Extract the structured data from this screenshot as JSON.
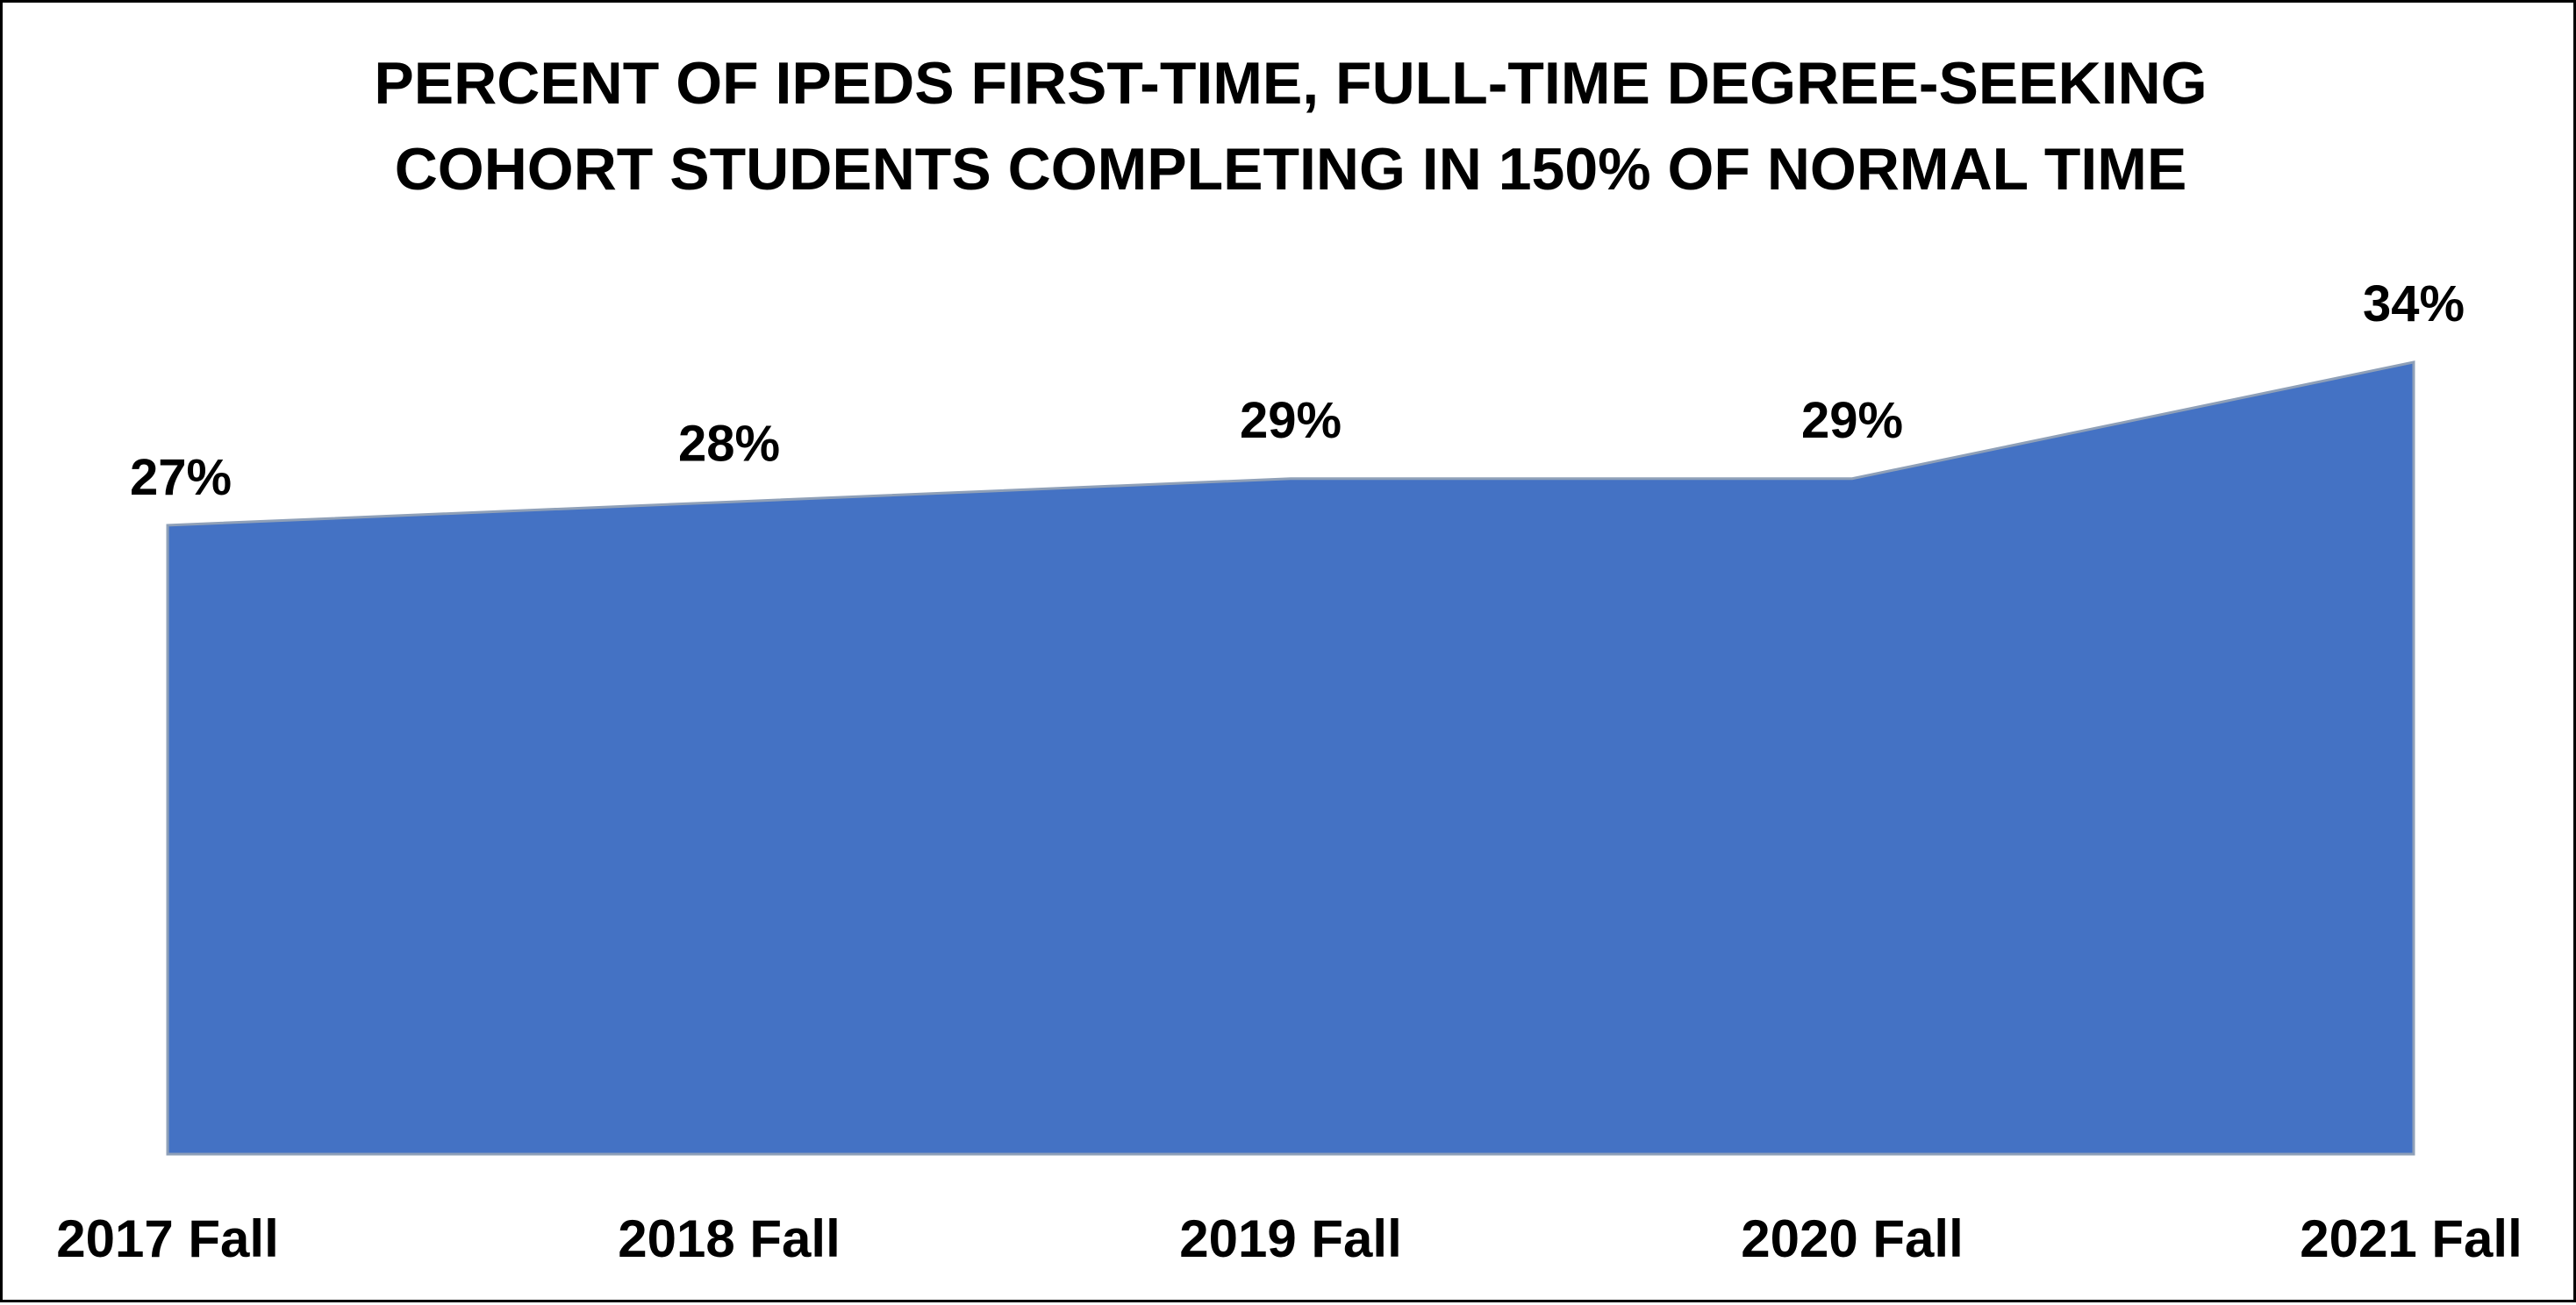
{
  "chart_data": {
    "type": "area",
    "title_lines": [
      "PERCENT OF IPEDS FIRST-TIME, FULL-TIME DEGREE-SEEKING",
      "COHORT STUDENTS COMPLETING IN 150% OF NORMAL TIME"
    ],
    "categories": [
      "2017 Fall",
      "2018 Fall",
      "2019 Fall",
      "2020 Fall",
      "2021 Fall"
    ],
    "values": [
      27,
      28,
      29,
      29,
      34
    ],
    "data_labels": [
      "27%",
      "28%",
      "29%",
      "29%",
      "34%"
    ],
    "xlabel": "",
    "ylabel": "",
    "ylim": [
      0,
      34
    ],
    "grid": false,
    "legend": "none",
    "colors": {
      "fill": "#4472C4",
      "line": "#8FA0B8",
      "text": "#000000"
    }
  }
}
